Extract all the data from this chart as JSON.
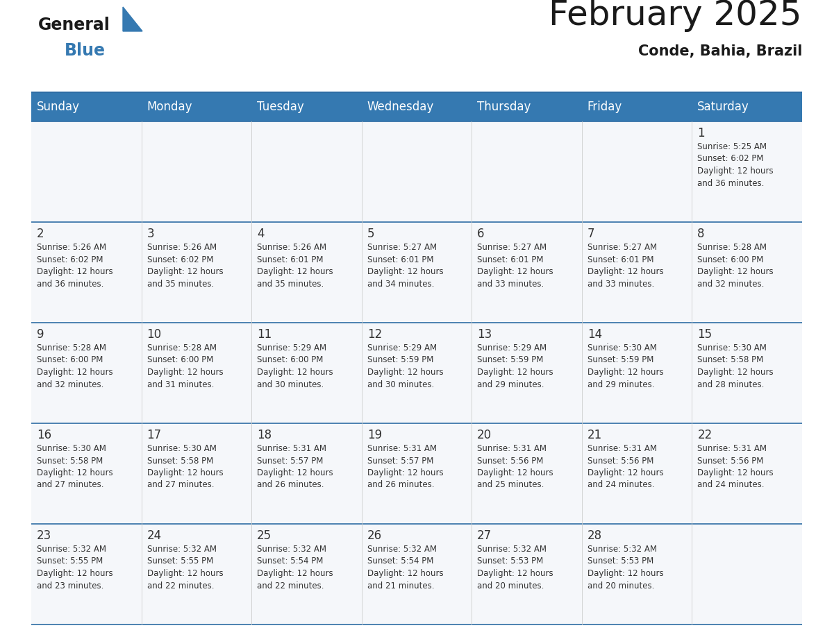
{
  "title": "February 2025",
  "subtitle": "Conde, Bahia, Brazil",
  "header_bg": "#3579b1",
  "header_text_color": "#ffffff",
  "day_headers": [
    "Sunday",
    "Monday",
    "Tuesday",
    "Wednesday",
    "Thursday",
    "Friday",
    "Saturday"
  ],
  "days": [
    {
      "day": 1,
      "col": 6,
      "row": 0,
      "sunrise": "5:25 AM",
      "sunset": "6:02 PM",
      "daylight": "12 hours and 36 minutes."
    },
    {
      "day": 2,
      "col": 0,
      "row": 1,
      "sunrise": "5:26 AM",
      "sunset": "6:02 PM",
      "daylight": "12 hours and 36 minutes."
    },
    {
      "day": 3,
      "col": 1,
      "row": 1,
      "sunrise": "5:26 AM",
      "sunset": "6:02 PM",
      "daylight": "12 hours and 35 minutes."
    },
    {
      "day": 4,
      "col": 2,
      "row": 1,
      "sunrise": "5:26 AM",
      "sunset": "6:01 PM",
      "daylight": "12 hours and 35 minutes."
    },
    {
      "day": 5,
      "col": 3,
      "row": 1,
      "sunrise": "5:27 AM",
      "sunset": "6:01 PM",
      "daylight": "12 hours and 34 minutes."
    },
    {
      "day": 6,
      "col": 4,
      "row": 1,
      "sunrise": "5:27 AM",
      "sunset": "6:01 PM",
      "daylight": "12 hours and 33 minutes."
    },
    {
      "day": 7,
      "col": 5,
      "row": 1,
      "sunrise": "5:27 AM",
      "sunset": "6:01 PM",
      "daylight": "12 hours and 33 minutes."
    },
    {
      "day": 8,
      "col": 6,
      "row": 1,
      "sunrise": "5:28 AM",
      "sunset": "6:00 PM",
      "daylight": "12 hours and 32 minutes."
    },
    {
      "day": 9,
      "col": 0,
      "row": 2,
      "sunrise": "5:28 AM",
      "sunset": "6:00 PM",
      "daylight": "12 hours and 32 minutes."
    },
    {
      "day": 10,
      "col": 1,
      "row": 2,
      "sunrise": "5:28 AM",
      "sunset": "6:00 PM",
      "daylight": "12 hours and 31 minutes."
    },
    {
      "day": 11,
      "col": 2,
      "row": 2,
      "sunrise": "5:29 AM",
      "sunset": "6:00 PM",
      "daylight": "12 hours and 30 minutes."
    },
    {
      "day": 12,
      "col": 3,
      "row": 2,
      "sunrise": "5:29 AM",
      "sunset": "5:59 PM",
      "daylight": "12 hours and 30 minutes."
    },
    {
      "day": 13,
      "col": 4,
      "row": 2,
      "sunrise": "5:29 AM",
      "sunset": "5:59 PM",
      "daylight": "12 hours and 29 minutes."
    },
    {
      "day": 14,
      "col": 5,
      "row": 2,
      "sunrise": "5:30 AM",
      "sunset": "5:59 PM",
      "daylight": "12 hours and 29 minutes."
    },
    {
      "day": 15,
      "col": 6,
      "row": 2,
      "sunrise": "5:30 AM",
      "sunset": "5:58 PM",
      "daylight": "12 hours and 28 minutes."
    },
    {
      "day": 16,
      "col": 0,
      "row": 3,
      "sunrise": "5:30 AM",
      "sunset": "5:58 PM",
      "daylight": "12 hours and 27 minutes."
    },
    {
      "day": 17,
      "col": 1,
      "row": 3,
      "sunrise": "5:30 AM",
      "sunset": "5:58 PM",
      "daylight": "12 hours and 27 minutes."
    },
    {
      "day": 18,
      "col": 2,
      "row": 3,
      "sunrise": "5:31 AM",
      "sunset": "5:57 PM",
      "daylight": "12 hours and 26 minutes."
    },
    {
      "day": 19,
      "col": 3,
      "row": 3,
      "sunrise": "5:31 AM",
      "sunset": "5:57 PM",
      "daylight": "12 hours and 26 minutes."
    },
    {
      "day": 20,
      "col": 4,
      "row": 3,
      "sunrise": "5:31 AM",
      "sunset": "5:56 PM",
      "daylight": "12 hours and 25 minutes."
    },
    {
      "day": 21,
      "col": 5,
      "row": 3,
      "sunrise": "5:31 AM",
      "sunset": "5:56 PM",
      "daylight": "12 hours and 24 minutes."
    },
    {
      "day": 22,
      "col": 6,
      "row": 3,
      "sunrise": "5:31 AM",
      "sunset": "5:56 PM",
      "daylight": "12 hours and 24 minutes."
    },
    {
      "day": 23,
      "col": 0,
      "row": 4,
      "sunrise": "5:32 AM",
      "sunset": "5:55 PM",
      "daylight": "12 hours and 23 minutes."
    },
    {
      "day": 24,
      "col": 1,
      "row": 4,
      "sunrise": "5:32 AM",
      "sunset": "5:55 PM",
      "daylight": "12 hours and 22 minutes."
    },
    {
      "day": 25,
      "col": 2,
      "row": 4,
      "sunrise": "5:32 AM",
      "sunset": "5:54 PM",
      "daylight": "12 hours and 22 minutes."
    },
    {
      "day": 26,
      "col": 3,
      "row": 4,
      "sunrise": "5:32 AM",
      "sunset": "5:54 PM",
      "daylight": "12 hours and 21 minutes."
    },
    {
      "day": 27,
      "col": 4,
      "row": 4,
      "sunrise": "5:32 AM",
      "sunset": "5:53 PM",
      "daylight": "12 hours and 20 minutes."
    },
    {
      "day": 28,
      "col": 5,
      "row": 4,
      "sunrise": "5:32 AM",
      "sunset": "5:53 PM",
      "daylight": "12 hours and 20 minutes."
    }
  ],
  "num_rows": 5,
  "num_cols": 7,
  "logo_general_color": "#1a1a1a",
  "logo_blue_color": "#3579b1",
  "logo_triangle_color": "#3579b1",
  "title_color": "#1a1a1a",
  "subtitle_color": "#1a1a1a",
  "border_color": "#2e6da4",
  "cell_bg": "#f5f7fa",
  "cell_text_color": "#333333",
  "day_num_color": "#333333",
  "separator_color": "#cccccc",
  "title_fontsize": 36,
  "subtitle_fontsize": 15,
  "header_fontsize": 12,
  "day_num_fontsize": 12,
  "cell_fontsize": 8.5
}
